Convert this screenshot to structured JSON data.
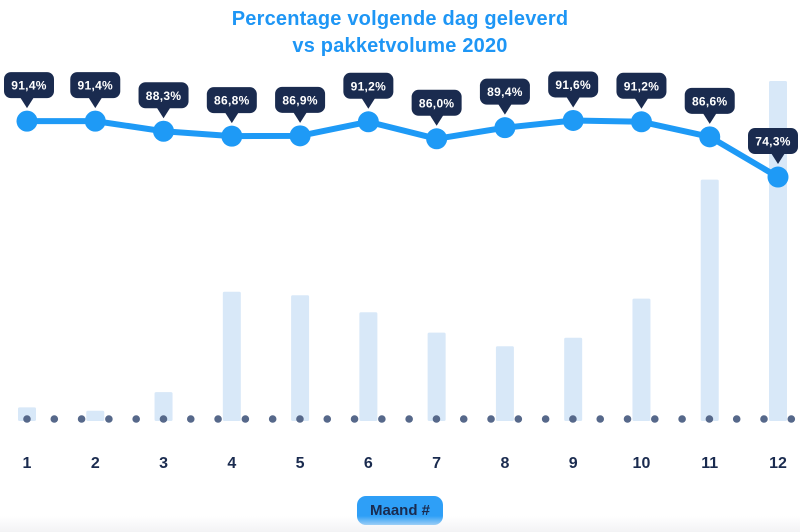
{
  "title": {
    "line1": "Percentage volgende dag geleverd",
    "line2": "vs pakketvolume 2020"
  },
  "x_axis": {
    "button_label": "Maand #"
  },
  "colors": {
    "title": "#1e96f5",
    "line": "#1e9af6",
    "navy": "#1a2b4f",
    "bar_fill": "#d8e8f8",
    "baseline_dot": "#56688a",
    "button_bg": "#2e9ff7",
    "callout_text": "#ffffff",
    "background": "#ffffff"
  },
  "chart_data": {
    "type": "combo-line-bar",
    "title": "Percentage volgende dag geleverd vs pakketvolume 2020",
    "xlabel": "Maand #",
    "categories": [
      "1",
      "2",
      "3",
      "4",
      "5",
      "6",
      "7",
      "8",
      "9",
      "10",
      "11",
      "12"
    ],
    "legend": false,
    "y_axis_visible": false,
    "baseline_style": "dotted",
    "series": [
      {
        "name": "Percentage volgende dag geleverd",
        "type": "line",
        "unit": "%",
        "ylim": [
          0,
          100
        ],
        "values": [
          91.4,
          91.4,
          88.3,
          86.8,
          86.9,
          91.2,
          86.0,
          89.4,
          91.6,
          91.2,
          86.6,
          74.3
        ],
        "point_labels": [
          "91,4%",
          "91,4%",
          "88,3%",
          "86,8%",
          "86,9%",
          "91,2%",
          "86,0%",
          "89,4%",
          "91,6%",
          "91,2%",
          "86,6%",
          "74,3%"
        ]
      },
      {
        "name": "Pakketvolume 2020",
        "type": "bar",
        "unit": "relative index (no value axis shown, December = 100)",
        "ylim": [
          0,
          100
        ],
        "values": [
          4,
          3,
          8.5,
          38,
          37,
          32,
          26,
          22,
          24.5,
          36,
          71,
          100
        ]
      }
    ]
  }
}
